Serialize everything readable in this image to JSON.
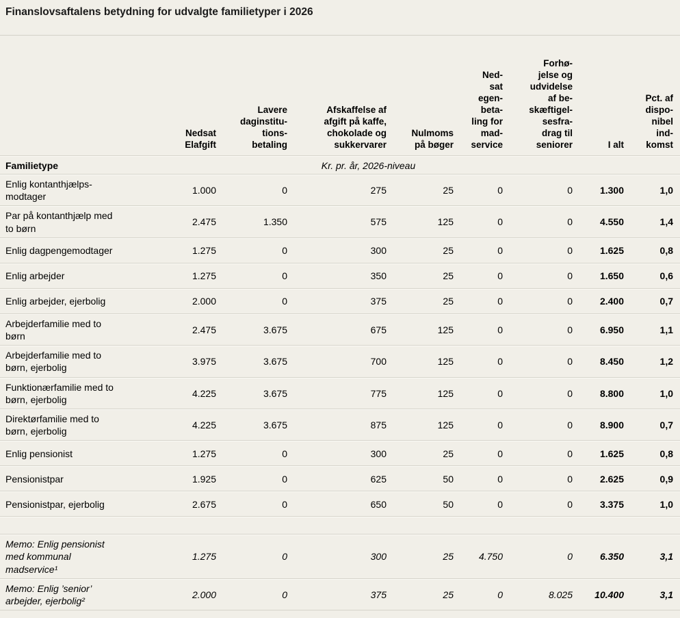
{
  "title": "Finanslovsaftalens betydning for udvalgte familietyper i 2026",
  "colors": {
    "background": "#f1efe8",
    "separator_dark": "#d6d4cb",
    "separator_light": "#fbfaf5",
    "text": "#000000"
  },
  "table": {
    "row_header": "Familietype",
    "unit_label": "Kr. pr. år, 2026-niveau",
    "columns": [
      "Nedsat\nElafgift",
      "Lavere\ndaginstitu-\ntions-\nbetaling",
      "Afskaffelse af\nafgift på kaffe,\nchokolade og\nsukkervarer",
      "Nulmoms\npå bøger",
      "Ned-\nsat\negen-\nbeta-\nling for\nmad-\nservice",
      "Forhø-\njelse og\nudvidelse\naf be-\nskæftigel-\nsesfra-\ndrag til\nseniorer",
      "I alt",
      "Pct. af\ndispo-\nnibel\nind-\nkomst"
    ],
    "rows": [
      {
        "label": "Enlig kontanthjælps-\nmodtager",
        "values": [
          "1.000",
          "0",
          "275",
          "25",
          "0",
          "0"
        ],
        "total": "1.300",
        "pct": "1,0",
        "memo": false
      },
      {
        "label": "Par på kontanthjælp med\nto børn",
        "values": [
          "2.475",
          "1.350",
          "575",
          "125",
          "0",
          "0"
        ],
        "total": "4.550",
        "pct": "1,4",
        "memo": false
      },
      {
        "label": "Enlig dagpengemodtager",
        "values": [
          "1.275",
          "0",
          "300",
          "25",
          "0",
          "0"
        ],
        "total": "1.625",
        "pct": "0,8",
        "memo": false
      },
      {
        "label": "Enlig arbejder",
        "values": [
          "1.275",
          "0",
          "350",
          "25",
          "0",
          "0"
        ],
        "total": "1.650",
        "pct": "0,6",
        "memo": false
      },
      {
        "label": "Enlig arbejder, ejerbolig",
        "values": [
          "2.000",
          "0",
          "375",
          "25",
          "0",
          "0"
        ],
        "total": "2.400",
        "pct": "0,7",
        "memo": false
      },
      {
        "label": "Arbejderfamilie med to\nbørn",
        "values": [
          "2.475",
          "3.675",
          "675",
          "125",
          "0",
          "0"
        ],
        "total": "6.950",
        "pct": "1,1",
        "memo": false
      },
      {
        "label": "Arbejderfamilie med to\nbørn, ejerbolig",
        "values": [
          "3.975",
          "3.675",
          "700",
          "125",
          "0",
          "0"
        ],
        "total": "8.450",
        "pct": "1,2",
        "memo": false
      },
      {
        "label": "Funktionærfamilie med to\nbørn, ejerbolig",
        "values": [
          "4.225",
          "3.675",
          "775",
          "125",
          "0",
          "0"
        ],
        "total": "8.800",
        "pct": "1,0",
        "memo": false
      },
      {
        "label": "Direktørfamilie med to\nbørn, ejerbolig",
        "values": [
          "4.225",
          "3.675",
          "875",
          "125",
          "0",
          "0"
        ],
        "total": "8.900",
        "pct": "0,7",
        "memo": false
      },
      {
        "label": "Enlig pensionist",
        "values": [
          "1.275",
          "0",
          "300",
          "25",
          "0",
          "0"
        ],
        "total": "1.625",
        "pct": "0,8",
        "memo": false
      },
      {
        "label": "Pensionistpar",
        "values": [
          "1.925",
          "0",
          "625",
          "50",
          "0",
          "0"
        ],
        "total": "2.625",
        "pct": "0,9",
        "memo": false
      },
      {
        "label": "Pensionistpar, ejerbolig",
        "values": [
          "2.675",
          "0",
          "650",
          "50",
          "0",
          "0"
        ],
        "total": "3.375",
        "pct": "1,0",
        "memo": false
      },
      {
        "label": "Memo: Enlig pensionist\nmed kommunal\nmadservice¹",
        "values": [
          "1.275",
          "0",
          "300",
          "25",
          "4.750",
          "0"
        ],
        "total": "6.350",
        "pct": "3,1",
        "memo": true
      },
      {
        "label": "Memo: Enlig ’senior’\narbejder, ejerbolig²",
        "values": [
          "2.000",
          "0",
          "375",
          "25",
          "0",
          "8.025"
        ],
        "total": "10.400",
        "pct": "3,1",
        "memo": true
      }
    ]
  }
}
